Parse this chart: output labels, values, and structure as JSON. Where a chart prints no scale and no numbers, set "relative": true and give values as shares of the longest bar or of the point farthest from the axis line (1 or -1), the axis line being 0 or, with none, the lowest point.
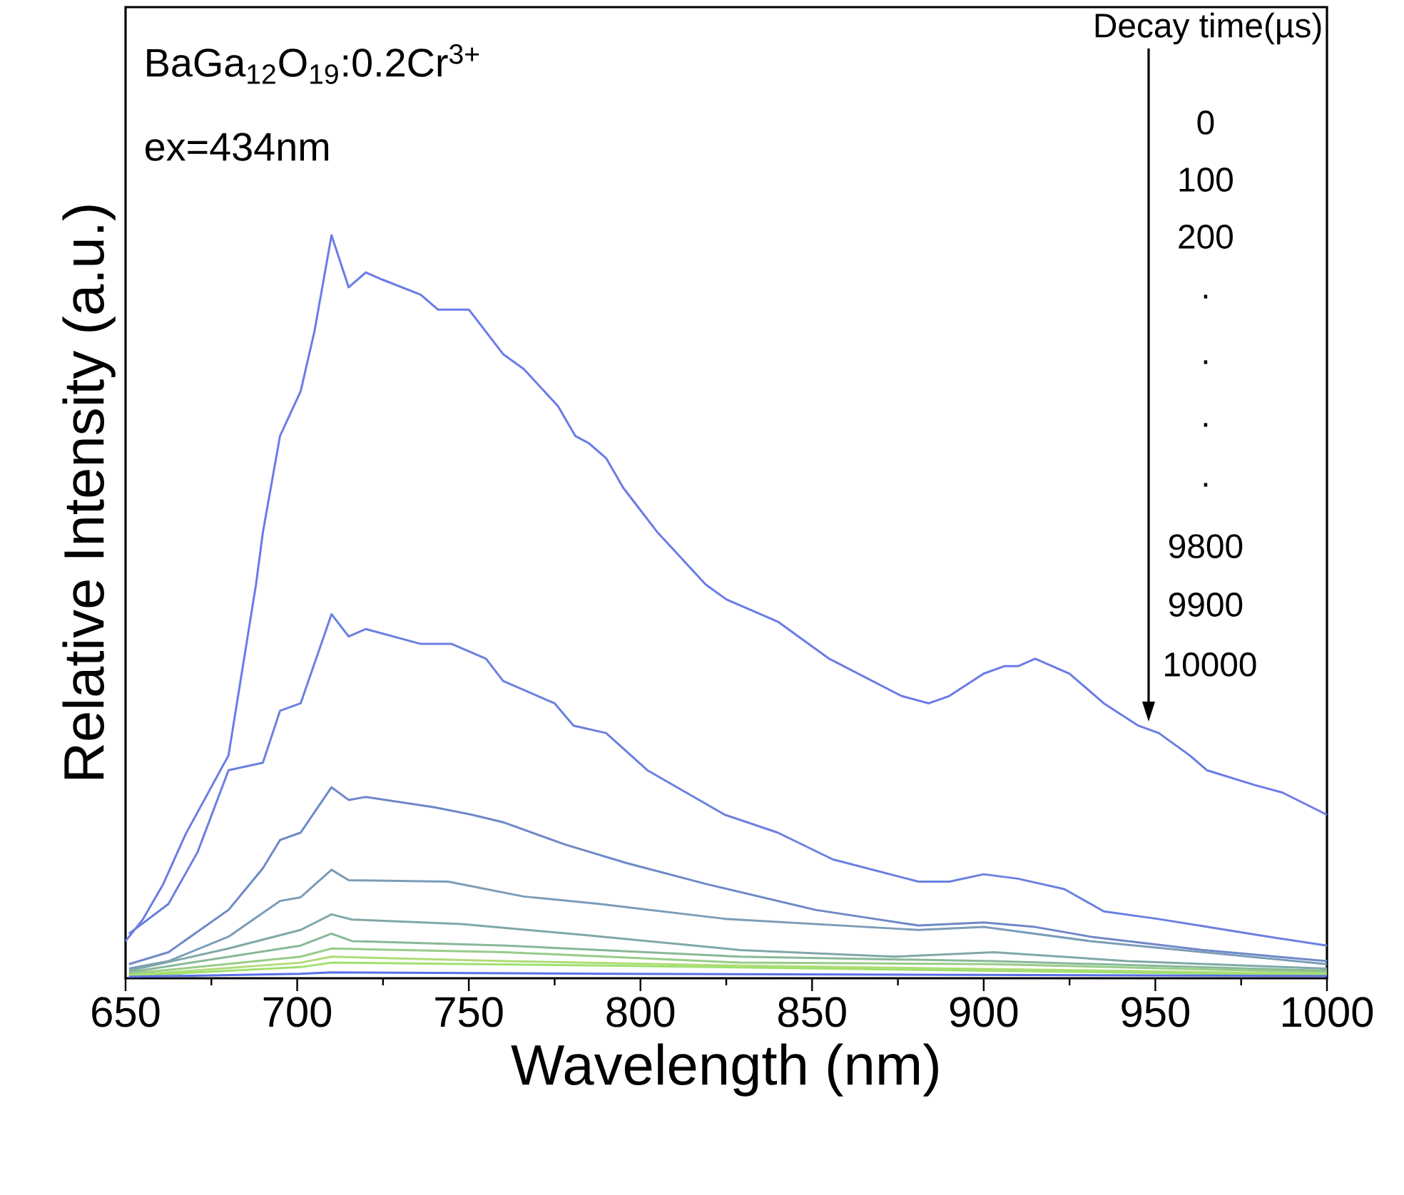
{
  "chart_data": {
    "type": "line",
    "relative": true,
    "xlabel": "Wavelength (nm)",
    "ylabel": "Relative Intensity (a.u.)",
    "xlim": [
      650,
      1000
    ],
    "xticks": [
      650,
      700,
      750,
      800,
      850,
      900,
      950,
      1000
    ],
    "grid": false,
    "marker": "none",
    "line_style": "solid",
    "annotations": [
      "BaGa$_{12}$O$_{19}$:0.2Cr$^{3+}$",
      "ex=434nm",
      "Decay time(µs)",
      "0",
      "100",
      "200",
      ".",
      ".",
      ".",
      ".",
      "9800",
      "9900",
      "10000"
    ],
    "series": [
      {
        "color": "#6a7be8",
        "x": [
          650,
          655,
          661,
          667.5,
          680,
          688,
          690,
          695,
          701,
          705,
          710,
          715,
          720,
          725,
          736,
          741,
          745,
          750,
          755,
          760,
          766,
          776,
          781,
          785,
          790,
          795,
          800,
          805,
          811,
          819,
          825,
          840,
          855,
          876,
          884,
          890,
          900,
          906,
          910,
          915,
          925,
          935,
          945,
          951,
          960,
          965,
          979,
          987,
          1000
        ],
        "values": [
          0.05,
          0.079,
          0.127,
          0.194,
          0.3,
          0.53,
          0.6,
          0.73,
          0.79,
          0.87,
          1.0,
          0.93,
          0.95,
          0.94,
          0.92,
          0.9,
          0.9,
          0.9,
          0.87,
          0.84,
          0.82,
          0.77,
          0.73,
          0.72,
          0.7,
          0.66,
          0.63,
          0.6,
          0.57,
          0.53,
          0.51,
          0.48,
          0.43,
          0.38,
          0.37,
          0.38,
          0.41,
          0.42,
          0.42,
          0.43,
          0.41,
          0.37,
          0.34,
          0.33,
          0.3,
          0.28,
          0.26,
          0.25,
          0.22
        ]
      },
      {
        "color": "#6a80e0",
        "x": [
          651,
          662.5,
          671,
          680,
          690,
          695,
          701,
          710,
          715,
          720,
          736,
          745,
          755,
          760,
          775,
          780.5,
          790,
          802,
          824.6,
          840,
          856,
          881,
          890,
          900,
          910,
          923.5,
          935,
          950.5,
          964,
          980,
          1000
        ],
        "values": [
          0.06,
          0.1,
          0.17,
          0.28,
          0.29,
          0.36,
          0.37,
          0.49,
          0.46,
          0.47,
          0.45,
          0.45,
          0.43,
          0.4,
          0.37,
          0.34,
          0.33,
          0.28,
          0.22,
          0.196,
          0.16,
          0.13,
          0.13,
          0.14,
          0.134,
          0.12,
          0.09,
          0.08,
          0.07,
          0.058,
          0.044
        ]
      },
      {
        "color": "#6e88c8",
        "x": [
          651,
          662.5,
          680,
          690,
          695,
          701,
          710,
          715,
          720,
          740,
          751,
          760,
          778,
          796,
          819,
          851,
          881,
          900,
          915,
          931,
          964,
          1000
        ],
        "values": [
          0.019,
          0.035,
          0.092,
          0.148,
          0.186,
          0.196,
          0.257,
          0.24,
          0.244,
          0.23,
          0.22,
          0.21,
          0.18,
          0.155,
          0.127,
          0.092,
          0.071,
          0.075,
          0.069,
          0.056,
          0.038,
          0.023
        ]
      },
      {
        "color": "#7a9cb8",
        "x": [
          651,
          662.5,
          680,
          695,
          701,
          710,
          715,
          744,
          766,
          788,
          824.6,
          881,
          900,
          931,
          1000
        ],
        "values": [
          0.013,
          0.023,
          0.056,
          0.104,
          0.109,
          0.146,
          0.132,
          0.13,
          0.11,
          0.1,
          0.08,
          0.065,
          0.069,
          0.05,
          0.019
        ]
      },
      {
        "color": "#80a8a8",
        "x": [
          651,
          680,
          701,
          710,
          716,
          748,
          784,
          829,
          874,
          903,
          942,
          1000
        ],
        "values": [
          0.01,
          0.04,
          0.065,
          0.086,
          0.079,
          0.073,
          0.058,
          0.038,
          0.029,
          0.035,
          0.023,
          0.013
        ]
      },
      {
        "color": "#88b898",
        "x": [
          651,
          701,
          710,
          716,
          761,
          829,
          903,
          1000
        ],
        "values": [
          0.008,
          0.044,
          0.06,
          0.05,
          0.044,
          0.029,
          0.023,
          0.01
        ]
      },
      {
        "color": "#98cc88",
        "x": [
          651,
          701,
          710,
          761,
          829,
          903,
          1000
        ],
        "values": [
          0.006,
          0.029,
          0.04,
          0.035,
          0.021,
          0.019,
          0.008
        ]
      },
      {
        "color": "#b0dc78",
        "x": [
          651,
          701,
          710,
          761,
          829,
          1000
        ],
        "values": [
          0.004,
          0.021,
          0.029,
          0.023,
          0.017,
          0.006
        ]
      },
      {
        "color": "#a0e070",
        "x": [
          651,
          701,
          710,
          790,
          1000
        ],
        "values": [
          0.003,
          0.015,
          0.021,
          0.017,
          0.004
        ]
      },
      {
        "color": "#5a70e8",
        "x": [
          651,
          701,
          710,
          790,
          1000
        ],
        "values": [
          0.002,
          0.006,
          0.008,
          0.006,
          0.003
        ]
      }
    ]
  }
}
